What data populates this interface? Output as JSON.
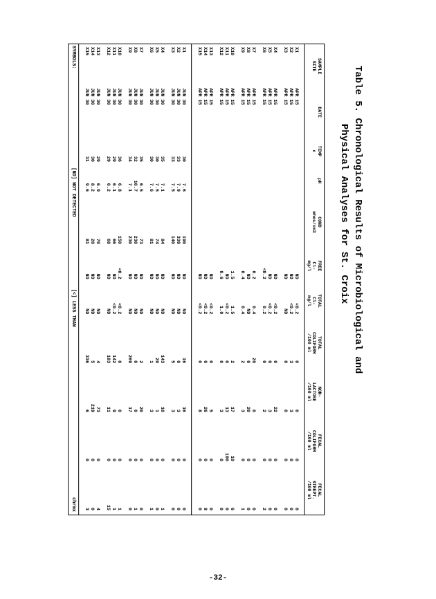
{
  "caption_line1": "Table 5.  Chronological Results of Microbiological and",
  "caption_line2": "Physical Analyses for St. Croix",
  "headers": [
    "SAMPLE\nSITE",
    "DATE",
    "TEMP\nc",
    "pH",
    "COND\nmhos/cm3",
    "FREE\nCl-\nmg/l",
    "TOTAL\nCl-\nmg/l",
    "TOTAL\nCOLIFORM\n/100 ml",
    "NON-\nLACTOSE\n/100 ml",
    "FECAL\nCOLIFORM\n/100 ml",
    "FECAL\nSTREPT.\n/100 ml"
  ],
  "col_widths": [
    "50",
    "55",
    "34",
    "34",
    "60",
    "40",
    "40",
    "56",
    "56",
    "56",
    "56"
  ],
  "symbols": "SYMBOLS:",
  "sym_nd": "[ND] NOT DETECTED",
  "sym_lt": "[<] LESS THAN",
  "sym_chrmx": "chrmx",
  "page_number": "-32-",
  "blocks": [
    {
      "groups": [
        [
          [
            "X1",
            "APR 15",
            "",
            "",
            "",
            "ND",
            "<0.2",
            "0",
            "0",
            "0",
            "0"
          ],
          [
            "X2",
            "APR 15",
            "",
            "",
            "",
            "ND",
            "<0.2",
            "3",
            "3",
            "0",
            "0"
          ],
          [
            "X3",
            "APR 15",
            "",
            "",
            "",
            "ND",
            "ND",
            "0",
            "0",
            "0",
            "0"
          ]
        ],
        [
          [
            "X4",
            "APR 15",
            "",
            "",
            "",
            "ND",
            "<0.2",
            "0",
            "22",
            "0",
            "0"
          ],
          [
            "X5",
            "APR 15",
            "",
            "",
            "",
            "ND",
            "<0.2",
            "0",
            "3",
            "0",
            "0"
          ],
          [
            "X6",
            "APR 15",
            "",
            "",
            "",
            "<0.2",
            "0.2",
            "0",
            "2",
            "0",
            "2"
          ]
        ],
        [
          [
            "X7",
            "APR 15",
            "",
            "",
            "",
            "0.2",
            "0.4",
            "20",
            "0",
            "0",
            "0"
          ],
          [
            "X8",
            "APR 15",
            "",
            "",
            "",
            "ND",
            "ND",
            "0",
            "20",
            "0",
            "0"
          ],
          [
            "X9",
            "APR 15",
            "",
            "",
            "",
            "0.4",
            "0.4",
            "2",
            "3",
            "0",
            "1"
          ]
        ],
        [
          [
            "X10",
            "APR 15",
            "",
            "",
            "",
            "1.5",
            "1.5",
            "2",
            "17",
            "10",
            "6"
          ],
          [
            "X11",
            "APR 15",
            "",
            "",
            "",
            "ND",
            "<0.2",
            "0",
            "13",
            "100",
            "0"
          ],
          [
            "X12",
            "APR 15",
            "",
            "",
            "",
            "0.6",
            "1.0",
            "0",
            "3",
            "0",
            "0"
          ]
        ],
        [
          [
            "X13",
            "APR 15",
            "",
            "",
            "",
            "ND",
            "<0.2",
            "0",
            "5",
            "0",
            "0"
          ],
          [
            "X14",
            "APR 15",
            "",
            "",
            "",
            "ND",
            "<0.2",
            "0",
            "26",
            "0",
            "8"
          ],
          [
            "X15",
            "APR 15",
            "",
            "",
            "",
            "ND",
            "<0.2",
            "0",
            "8",
            "0",
            "0"
          ]
        ]
      ]
    },
    {
      "groups": [
        [
          [
            "X1",
            "JUN 30",
            "30",
            "7.6",
            "190",
            "ND",
            "ND",
            "16",
            "16",
            "0",
            "0"
          ],
          [
            "X2",
            "JUN 30",
            "33",
            "7.9",
            "339",
            "ND",
            "ND",
            "0",
            "3",
            "0",
            "0"
          ],
          [
            "X3",
            "JUN 30",
            "33",
            "7.5",
            "140",
            "ND",
            "ND",
            "5",
            "3",
            "0",
            "0"
          ]
        ],
        [
          [
            "X4",
            "JUN 30",
            "35",
            "7.1",
            "84",
            "ND",
            "ND",
            "143",
            "10",
            "0",
            "1"
          ],
          [
            "X5",
            "JUN 30",
            "30",
            "7.5",
            "74",
            "ND",
            "ND",
            "20",
            "1",
            "0",
            "0"
          ],
          [
            "X6",
            "JUN 30",
            "30",
            "7.6",
            "81",
            "ND",
            "ND",
            "1",
            "3",
            "0",
            "1"
          ]
        ],
        [
          [
            "X7",
            "JUN 30",
            "35",
            "6.5",
            "73",
            "ND",
            "ND",
            "2",
            "20",
            "0",
            "0"
          ],
          [
            "X8",
            "JUN 30",
            "32",
            "10.7",
            "230",
            "ND",
            "ND",
            "0",
            "0",
            "0",
            "1"
          ],
          [
            "X9",
            "JUN 30",
            "34",
            "7.1",
            "230",
            "ND",
            "ND",
            "269",
            "17",
            "0",
            "0"
          ]
        ],
        [
          [
            "X10",
            "JUN 30",
            "36",
            "6.8",
            "150",
            "<0.2",
            "<0.2",
            "0",
            "0",
            "0",
            "1"
          ],
          [
            "X11",
            "JUN 30",
            "29",
            "6.1",
            "66",
            "ND",
            "<0.2",
            "142",
            "9",
            "0",
            "1"
          ],
          [
            "X12",
            "JUN 30",
            "29",
            "6.2",
            "68",
            "ND",
            "ND",
            "183",
            "11",
            "0",
            "15"
          ]
        ],
        [
          [
            "X13",
            "JUN 30",
            "29",
            "6.9",
            "70",
            "ND",
            "ND",
            "4",
            "73",
            "0",
            "4"
          ],
          [
            "X14",
            "JUN 30",
            "30",
            "8.2",
            "20",
            "ND",
            "ND",
            "5",
            "219",
            "0",
            "0"
          ],
          [
            "X15",
            "JUN 30",
            "31",
            "9.6",
            "81",
            "ND",
            "ND",
            "336",
            "6",
            "0",
            "3"
          ]
        ]
      ]
    }
  ]
}
